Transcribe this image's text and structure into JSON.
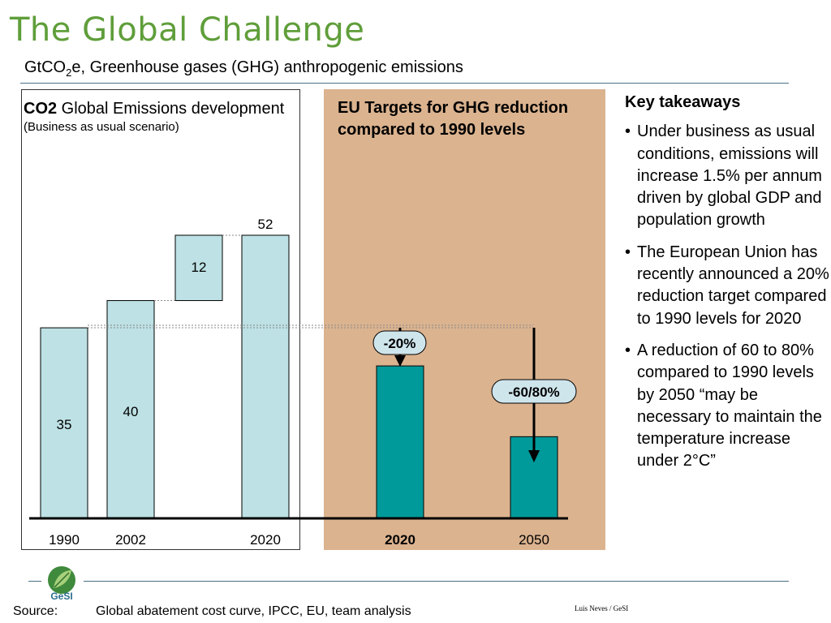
{
  "slide": {
    "title": "The Global Challenge",
    "subtitle_main": "GtCO",
    "subtitle_sub": "2",
    "subtitle_rest": "e, Greenhouse gases (GHG) anthropogenic emissions"
  },
  "left_panel": {
    "heading_bold": "CO2",
    "heading_rest": " Global Emissions development",
    "heading_note": "(Business as usual scenario)"
  },
  "eu_panel": {
    "heading": "EU Targets for GHG reduction compared to 1990 levels"
  },
  "takeaways": {
    "title": "Key takeaways",
    "items": [
      "Under business as usual conditions, emissions will increase 1.5% per annum driven by global GDP and population growth",
      "The European Union has recently announced a 20% reduction target compared to 1990 levels for 2020",
      "A reduction of 60 to 80% compared to 1990 levels by 2050 “may be necessary to maintain the temperature increase under 2°C”"
    ]
  },
  "footer": {
    "source_label": "Source:",
    "source_text": "Global abatement cost curve, IPCC, EU, team analysis",
    "author": "Luis Neves / GeSI",
    "logo_text": "GeSI"
  },
  "colors": {
    "title_green": "#5f9e3a",
    "bar_light": "#bde1e4",
    "bar_teal": "#009a9a",
    "eu_panel_bg": "#dbb38f",
    "callout_bg": "#cfe5ec",
    "rule": "#4a6f86"
  },
  "chart_data": {
    "type": "bar",
    "units": "GtCO2e",
    "bau": {
      "categories": [
        "1990",
        "2002",
        "",
        "2020"
      ],
      "labels": [
        "35",
        "40",
        "12",
        "52"
      ],
      "bars": [
        {
          "category": "1990",
          "bottom": 0,
          "top": 35,
          "label": "35"
        },
        {
          "category": "2002",
          "bottom": 0,
          "top": 40,
          "label": "40"
        },
        {
          "category": "",
          "bottom": 40,
          "top": 52,
          "label": "12"
        },
        {
          "category": "2020",
          "bottom": 0,
          "top": 52,
          "label": "52"
        }
      ]
    },
    "eu_targets": {
      "categories": [
        "2020",
        "2050"
      ],
      "values": [
        28,
        15
      ],
      "callouts": [
        "-20%",
        "-60/80%"
      ]
    },
    "ylim": [
      0,
      52
    ]
  }
}
